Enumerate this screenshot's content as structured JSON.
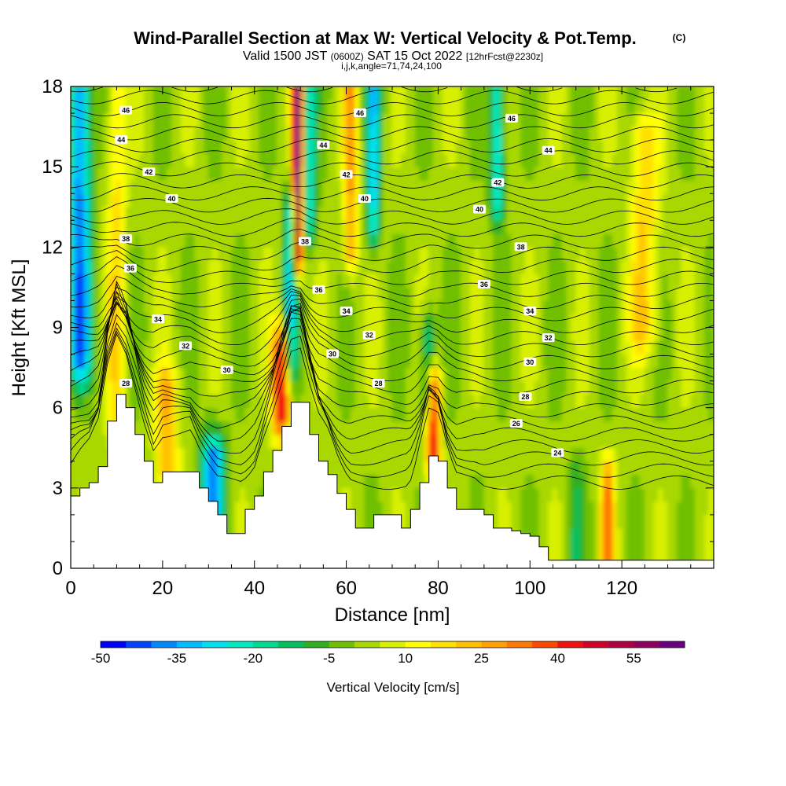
{
  "title": {
    "main": "Wind-Parallel Section at Max W: Vertical Velocity & Pot.Temp.",
    "copyright": "(C)",
    "valid_prefix": "Valid 1500 JST",
    "valid_utc": "(0600Z)",
    "valid_date": "SAT 15 Oct 2022",
    "forecast": "[12hrFcst@2230z]",
    "params": "i,j,k,angle=71,74,24,100"
  },
  "colorbar": {
    "label": "Vertical Velocity [cm/s]",
    "min": -50,
    "max": 65,
    "step": 5,
    "tick_labels": [
      "-50",
      "-35",
      "-20",
      "-5",
      "10",
      "25",
      "40",
      "55"
    ],
    "colors": [
      "#0000ff",
      "#0044ff",
      "#0088ff",
      "#00bbff",
      "#00e0f0",
      "#00e8c0",
      "#00d890",
      "#00c060",
      "#30b020",
      "#70c000",
      "#a8d800",
      "#d8f000",
      "#ffff00",
      "#ffe000",
      "#ffc000",
      "#ffa000",
      "#ff7800",
      "#ff4800",
      "#f01010",
      "#d00028",
      "#b00040",
      "#900060",
      "#6a0080"
    ]
  },
  "chart_data": {
    "type": "heatmap",
    "title": "Wind-Parallel Section at Max W: Vertical Velocity & Pot.Temp.",
    "xlabel": "Distance [nm]",
    "ylabel": "Height [Kft MSL]",
    "xlim": [
      0,
      140
    ],
    "ylim": [
      0,
      18
    ],
    "x_ticks": [
      "0",
      "20",
      "40",
      "60",
      "80",
      "100",
      "120"
    ],
    "y_ticks": [
      "0",
      "3",
      "6",
      "9",
      "12",
      "15",
      "18"
    ],
    "terrain": {
      "x": [
        0,
        2,
        4,
        6,
        8,
        10,
        12,
        14,
        16,
        18,
        20,
        22,
        24,
        26,
        28,
        30,
        32,
        34,
        36,
        38,
        40,
        42,
        44,
        46,
        48,
        50,
        52,
        54,
        56,
        58,
        60,
        62,
        64,
        66,
        68,
        70,
        72,
        74,
        76,
        78,
        80,
        82,
        84,
        86,
        88,
        90,
        92,
        94,
        96,
        98,
        100,
        102,
        104,
        106,
        108,
        110,
        112,
        114,
        116,
        118,
        120,
        122,
        124,
        126,
        128,
        130,
        132,
        134,
        136,
        138,
        140
      ],
      "height": [
        2.7,
        3.0,
        3.2,
        3.8,
        5.5,
        6.5,
        6.0,
        5.0,
        4.0,
        3.2,
        3.6,
        3.6,
        3.6,
        3.6,
        3.0,
        2.5,
        2.0,
        1.3,
        1.3,
        2.2,
        2.7,
        3.6,
        4.4,
        5.3,
        6.2,
        6.2,
        5.0,
        4.0,
        3.5,
        2.8,
        2.2,
        1.5,
        1.5,
        2.0,
        2.0,
        2.0,
        1.5,
        2.2,
        3.2,
        4.2,
        4.0,
        3.0,
        2.2,
        2.2,
        2.2,
        2.0,
        1.5,
        1.5,
        1.4,
        1.3,
        1.2,
        0.8,
        0.3,
        0.3,
        0.3,
        0.3,
        0.3,
        0.3,
        0.3,
        0.3,
        0.3,
        0.3,
        0.3,
        0.3,
        0.3,
        0.3,
        0.3,
        0.3,
        0.3,
        0.3,
        0.3
      ]
    },
    "vertical_velocity_features": [
      {
        "x": 2,
        "w": -40,
        "width": 2.5,
        "zmin": 8,
        "zmax": 18
      },
      {
        "x": 10,
        "w": 15,
        "width": 2,
        "zmin": 6,
        "zmax": 18
      },
      {
        "x": 21,
        "w": 22,
        "width": 2.5,
        "zmin": 3.5,
        "zmax": 6.5
      },
      {
        "x": 31,
        "w": -40,
        "width": 2.5,
        "zmin": 2,
        "zmax": 4
      },
      {
        "x": 46,
        "w": 45,
        "width": 2,
        "zmin": 6,
        "zmax": 8
      },
      {
        "x": 48,
        "w": -30,
        "width": 1.5,
        "zmin": 8,
        "zmax": 13
      },
      {
        "x": 49.5,
        "w": 62,
        "width": 1.2,
        "zmin": 12,
        "zmax": 18
      },
      {
        "x": 52,
        "w": -25,
        "width": 1.5,
        "zmin": 13,
        "zmax": 18
      },
      {
        "x": 61,
        "w": 25,
        "width": 1.5,
        "zmin": 12,
        "zmax": 18
      },
      {
        "x": 66,
        "w": -30,
        "width": 1.5,
        "zmin": 13,
        "zmax": 18
      },
      {
        "x": 79,
        "w": 45,
        "width": 1.5,
        "zmin": 4.5,
        "zmax": 6.5
      },
      {
        "x": 78,
        "w": -25,
        "width": 1.5,
        "zmin": 6.5,
        "zmax": 8.5
      },
      {
        "x": 93,
        "w": -30,
        "width": 1.5,
        "zmin": 14,
        "zmax": 18
      },
      {
        "x": 117,
        "w": 28,
        "width": 1.5,
        "zmin": 0.3,
        "zmax": 3
      },
      {
        "x": 110,
        "w": -10,
        "width": 2,
        "zmin": 0.3,
        "zmax": 3
      },
      {
        "x": 125,
        "w": 18,
        "width": 3,
        "zmin": 9,
        "zmax": 16
      }
    ],
    "pot_temp_contour_labels": [
      {
        "x": 12,
        "y": 17.1,
        "label": "46"
      },
      {
        "x": 63,
        "y": 17.0,
        "label": "46"
      },
      {
        "x": 96,
        "y": 16.8,
        "label": "46"
      },
      {
        "x": 11,
        "y": 16.0,
        "label": "44"
      },
      {
        "x": 55,
        "y": 15.8,
        "label": "44"
      },
      {
        "x": 104,
        "y": 15.6,
        "label": "44"
      },
      {
        "x": 17,
        "y": 14.8,
        "label": "42"
      },
      {
        "x": 60,
        "y": 14.7,
        "label": "42"
      },
      {
        "x": 93,
        "y": 14.4,
        "label": "42"
      },
      {
        "x": 22,
        "y": 13.8,
        "label": "40"
      },
      {
        "x": 64,
        "y": 13.8,
        "label": "40"
      },
      {
        "x": 89,
        "y": 13.4,
        "label": "40"
      },
      {
        "x": 12,
        "y": 12.3,
        "label": "38"
      },
      {
        "x": 51,
        "y": 12.2,
        "label": "38"
      },
      {
        "x": 98,
        "y": 12.0,
        "label": "38"
      },
      {
        "x": 13,
        "y": 11.2,
        "label": "36"
      },
      {
        "x": 54,
        "y": 10.4,
        "label": "36"
      },
      {
        "x": 90,
        "y": 10.6,
        "label": "36"
      },
      {
        "x": 19,
        "y": 9.3,
        "label": "34"
      },
      {
        "x": 60,
        "y": 9.6,
        "label": "34"
      },
      {
        "x": 100,
        "y": 9.6,
        "label": "34"
      },
      {
        "x": 25,
        "y": 8.3,
        "label": "32"
      },
      {
        "x": 65,
        "y": 8.7,
        "label": "32"
      },
      {
        "x": 104,
        "y": 8.6,
        "label": "32"
      },
      {
        "x": 34,
        "y": 7.4,
        "label": "30"
      },
      {
        "x": 57,
        "y": 8.0,
        "label": "30"
      },
      {
        "x": 100,
        "y": 7.7,
        "label": "30"
      },
      {
        "x": 12,
        "y": 6.9,
        "label": "28"
      },
      {
        "x": 67,
        "y": 6.9,
        "label": "28"
      },
      {
        "x": 99,
        "y": 6.4,
        "label": "28"
      },
      {
        "x": 97,
        "y": 5.4,
        "label": "26"
      },
      {
        "x": 106,
        "y": 4.3,
        "label": "24"
      }
    ]
  }
}
